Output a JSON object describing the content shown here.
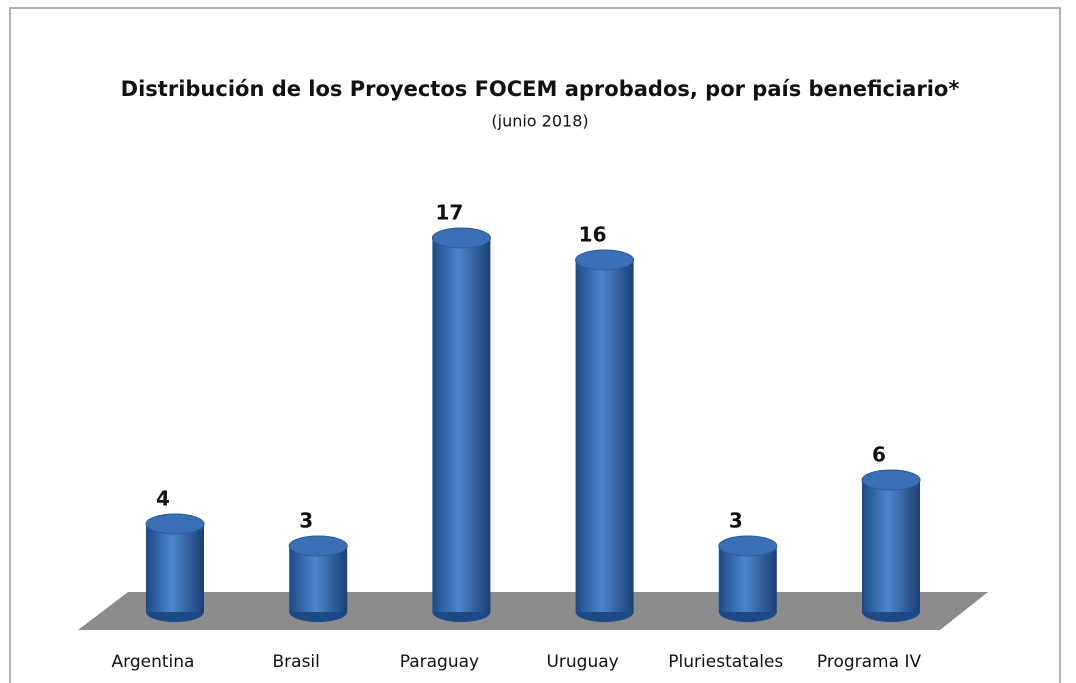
{
  "chart_data": {
    "type": "bar3d",
    "title": "Distribución de los Proyectos FOCEM aprobados, por país beneficiario*",
    "subtitle": "(junio 2018)",
    "categories": [
      "Argentina",
      "Brasil",
      "Paraguay",
      "Uruguay",
      "Pluriestatales",
      "Programa IV"
    ],
    "values": [
      4,
      3,
      17,
      16,
      3,
      6
    ],
    "color": "#3a6fb5"
  }
}
